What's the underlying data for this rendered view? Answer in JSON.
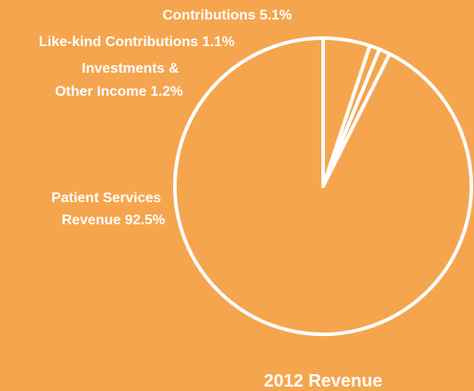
{
  "chart_data": {
    "type": "pie",
    "title": "2012 Revenue",
    "slices": [
      {
        "label_lines": [
          "Patient Services",
          "Revenue 92.5%"
        ],
        "label": "Patient Services Revenue",
        "value": 92.5
      },
      {
        "label_lines": [
          "Investments &",
          "Other Income 1.2%"
        ],
        "label": "Investments & Other Income",
        "value": 1.2
      },
      {
        "label_lines": [
          "Like-kind Contributions 1.1%"
        ],
        "label": "Like-kind Contributions",
        "value": 1.1
      },
      {
        "label_lines": [
          "Contributions 5.1%"
        ],
        "label": "Contributions",
        "value": 5.1
      }
    ]
  },
  "colors": {
    "background": "#F5A54E",
    "slice_fill": "#F5A54E",
    "stroke": "#FFFFFF",
    "text": "#FFFFFF"
  }
}
